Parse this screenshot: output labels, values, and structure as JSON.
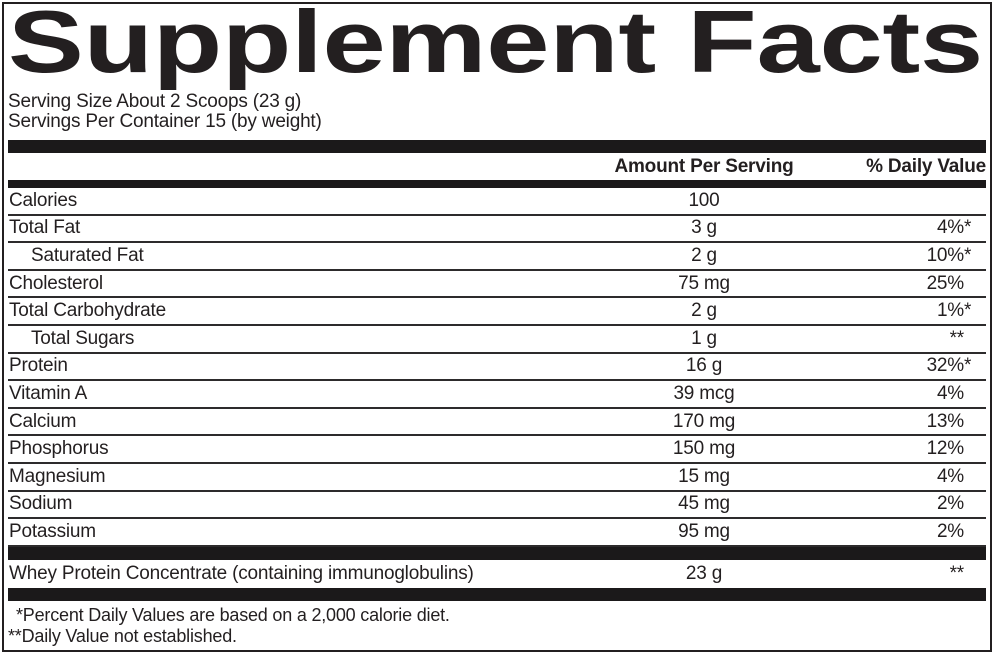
{
  "title": "Supplement Facts",
  "serving": {
    "size": "Serving Size About 2 Scoops (23 g)",
    "per_container": "Servings Per Container 15 (by weight)"
  },
  "columns": {
    "amount": "Amount Per Serving",
    "daily_value": "% Daily Value"
  },
  "rows": [
    {
      "label": "Calories",
      "amount": "100",
      "dv": "",
      "star": "",
      "indent": false
    },
    {
      "label": "Total Fat",
      "amount": "3 g",
      "dv": "4%",
      "star": "*",
      "indent": false
    },
    {
      "label": "Saturated Fat",
      "amount": "2 g",
      "dv": "10%",
      "star": "*",
      "indent": true
    },
    {
      "label": "Cholesterol",
      "amount": "75 mg",
      "dv": "25%",
      "star": "",
      "indent": false
    },
    {
      "label": "Total Carbohydrate",
      "amount": "2 g",
      "dv": "1%",
      "star": "*",
      "indent": false
    },
    {
      "label": "Total Sugars",
      "amount": "1 g",
      "dv": "**",
      "star": "",
      "indent": true
    },
    {
      "label": "Protein",
      "amount": "16 g",
      "dv": "32%",
      "star": "*",
      "indent": false
    },
    {
      "label": "Vitamin A",
      "amount": "39 mcg",
      "dv": "4%",
      "star": "",
      "indent": false
    },
    {
      "label": "Calcium",
      "amount": "170 mg",
      "dv": "13%",
      "star": "",
      "indent": false
    },
    {
      "label": "Phosphorus",
      "amount": "150 mg",
      "dv": "12%",
      "star": "",
      "indent": false
    },
    {
      "label": "Magnesium",
      "amount": "15 mg",
      "dv": "4%",
      "star": "",
      "indent": false
    },
    {
      "label": "Sodium",
      "amount": "45 mg",
      "dv": "2%",
      "star": "",
      "indent": false
    },
    {
      "label": "Potassium",
      "amount": "95 mg",
      "dv": "2%",
      "star": "",
      "indent": false
    }
  ],
  "extra_row": {
    "label": "Whey Protein Concentrate (containing immunoglobulins)",
    "amount": "23 g",
    "dv": "**",
    "star": ""
  },
  "footnotes": [
    "*Percent Daily Values are based on a 2,000 calorie diet.",
    "**Daily Value not established."
  ],
  "colors": {
    "text": "#231f20",
    "bar": "#1b191a",
    "divider": "#2d2b2c",
    "border": "#231f20",
    "background": "#ffffff"
  }
}
